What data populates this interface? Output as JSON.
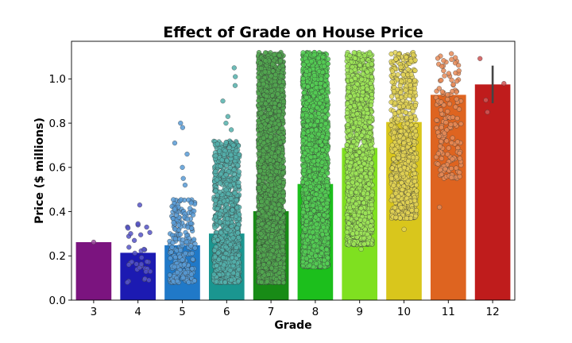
{
  "chart_data": {
    "type": "bar",
    "title": "Effect of Grade on House Price",
    "xlabel": "Grade",
    "ylabel": "Price ($ millions)",
    "categories": [
      "3",
      "4",
      "5",
      "6",
      "7",
      "8",
      "9",
      "10",
      "11",
      "12"
    ],
    "values": [
      0.262,
      0.214,
      0.248,
      0.301,
      0.402,
      0.525,
      0.688,
      0.805,
      0.928,
      0.975
    ],
    "colors": [
      "#7b147f",
      "#1c1ab2",
      "#2079c8",
      "#1a9690",
      "#188b16",
      "#1cbf1c",
      "#7fe020",
      "#d9c61c",
      "#de6420",
      "#bf1c1c"
    ],
    "error_bars": [
      {
        "category": "12",
        "low": 0.89,
        "high": 1.06
      }
    ],
    "strip_points": [
      {
        "category": "3",
        "min": 0.262,
        "max": 0.262,
        "count": 1,
        "outliers": []
      },
      {
        "category": "4",
        "min": 0.08,
        "max": 0.36,
        "count": 35,
        "outliers": [
          0.43
        ]
      },
      {
        "category": "5",
        "min": 0.08,
        "max": 0.46,
        "count": 220,
        "outliers": [
          0.52,
          0.55,
          0.6,
          0.66,
          0.71,
          0.78,
          0.8
        ]
      },
      {
        "category": "6",
        "min": 0.08,
        "max": 0.72,
        "count": 900,
        "outliers": [
          0.77,
          0.8,
          0.83,
          0.9,
          0.97,
          1.01,
          1.05
        ]
      },
      {
        "category": "7",
        "min": 0.08,
        "max": 1.12,
        "count": 2600,
        "outliers": []
      },
      {
        "category": "8",
        "min": 0.15,
        "max": 1.12,
        "count": 2600,
        "outliers": []
      },
      {
        "category": "9",
        "min": 0.25,
        "max": 1.12,
        "count": 1600,
        "outliers": [
          0.23
        ]
      },
      {
        "category": "10",
        "min": 0.37,
        "max": 1.12,
        "count": 700,
        "outliers": [
          0.32
        ]
      },
      {
        "category": "11",
        "min": 0.55,
        "max": 1.12,
        "count": 150,
        "outliers": [
          0.42
        ]
      },
      {
        "category": "12",
        "min": 0.84,
        "max": 1.1,
        "count": 4,
        "outliers": []
      }
    ],
    "ylim": [
      0.0,
      1.17
    ],
    "yticks": [
      "0.0",
      "0.2",
      "0.4",
      "0.6",
      "0.8",
      "1.0"
    ],
    "grid": false,
    "legend": "none"
  }
}
